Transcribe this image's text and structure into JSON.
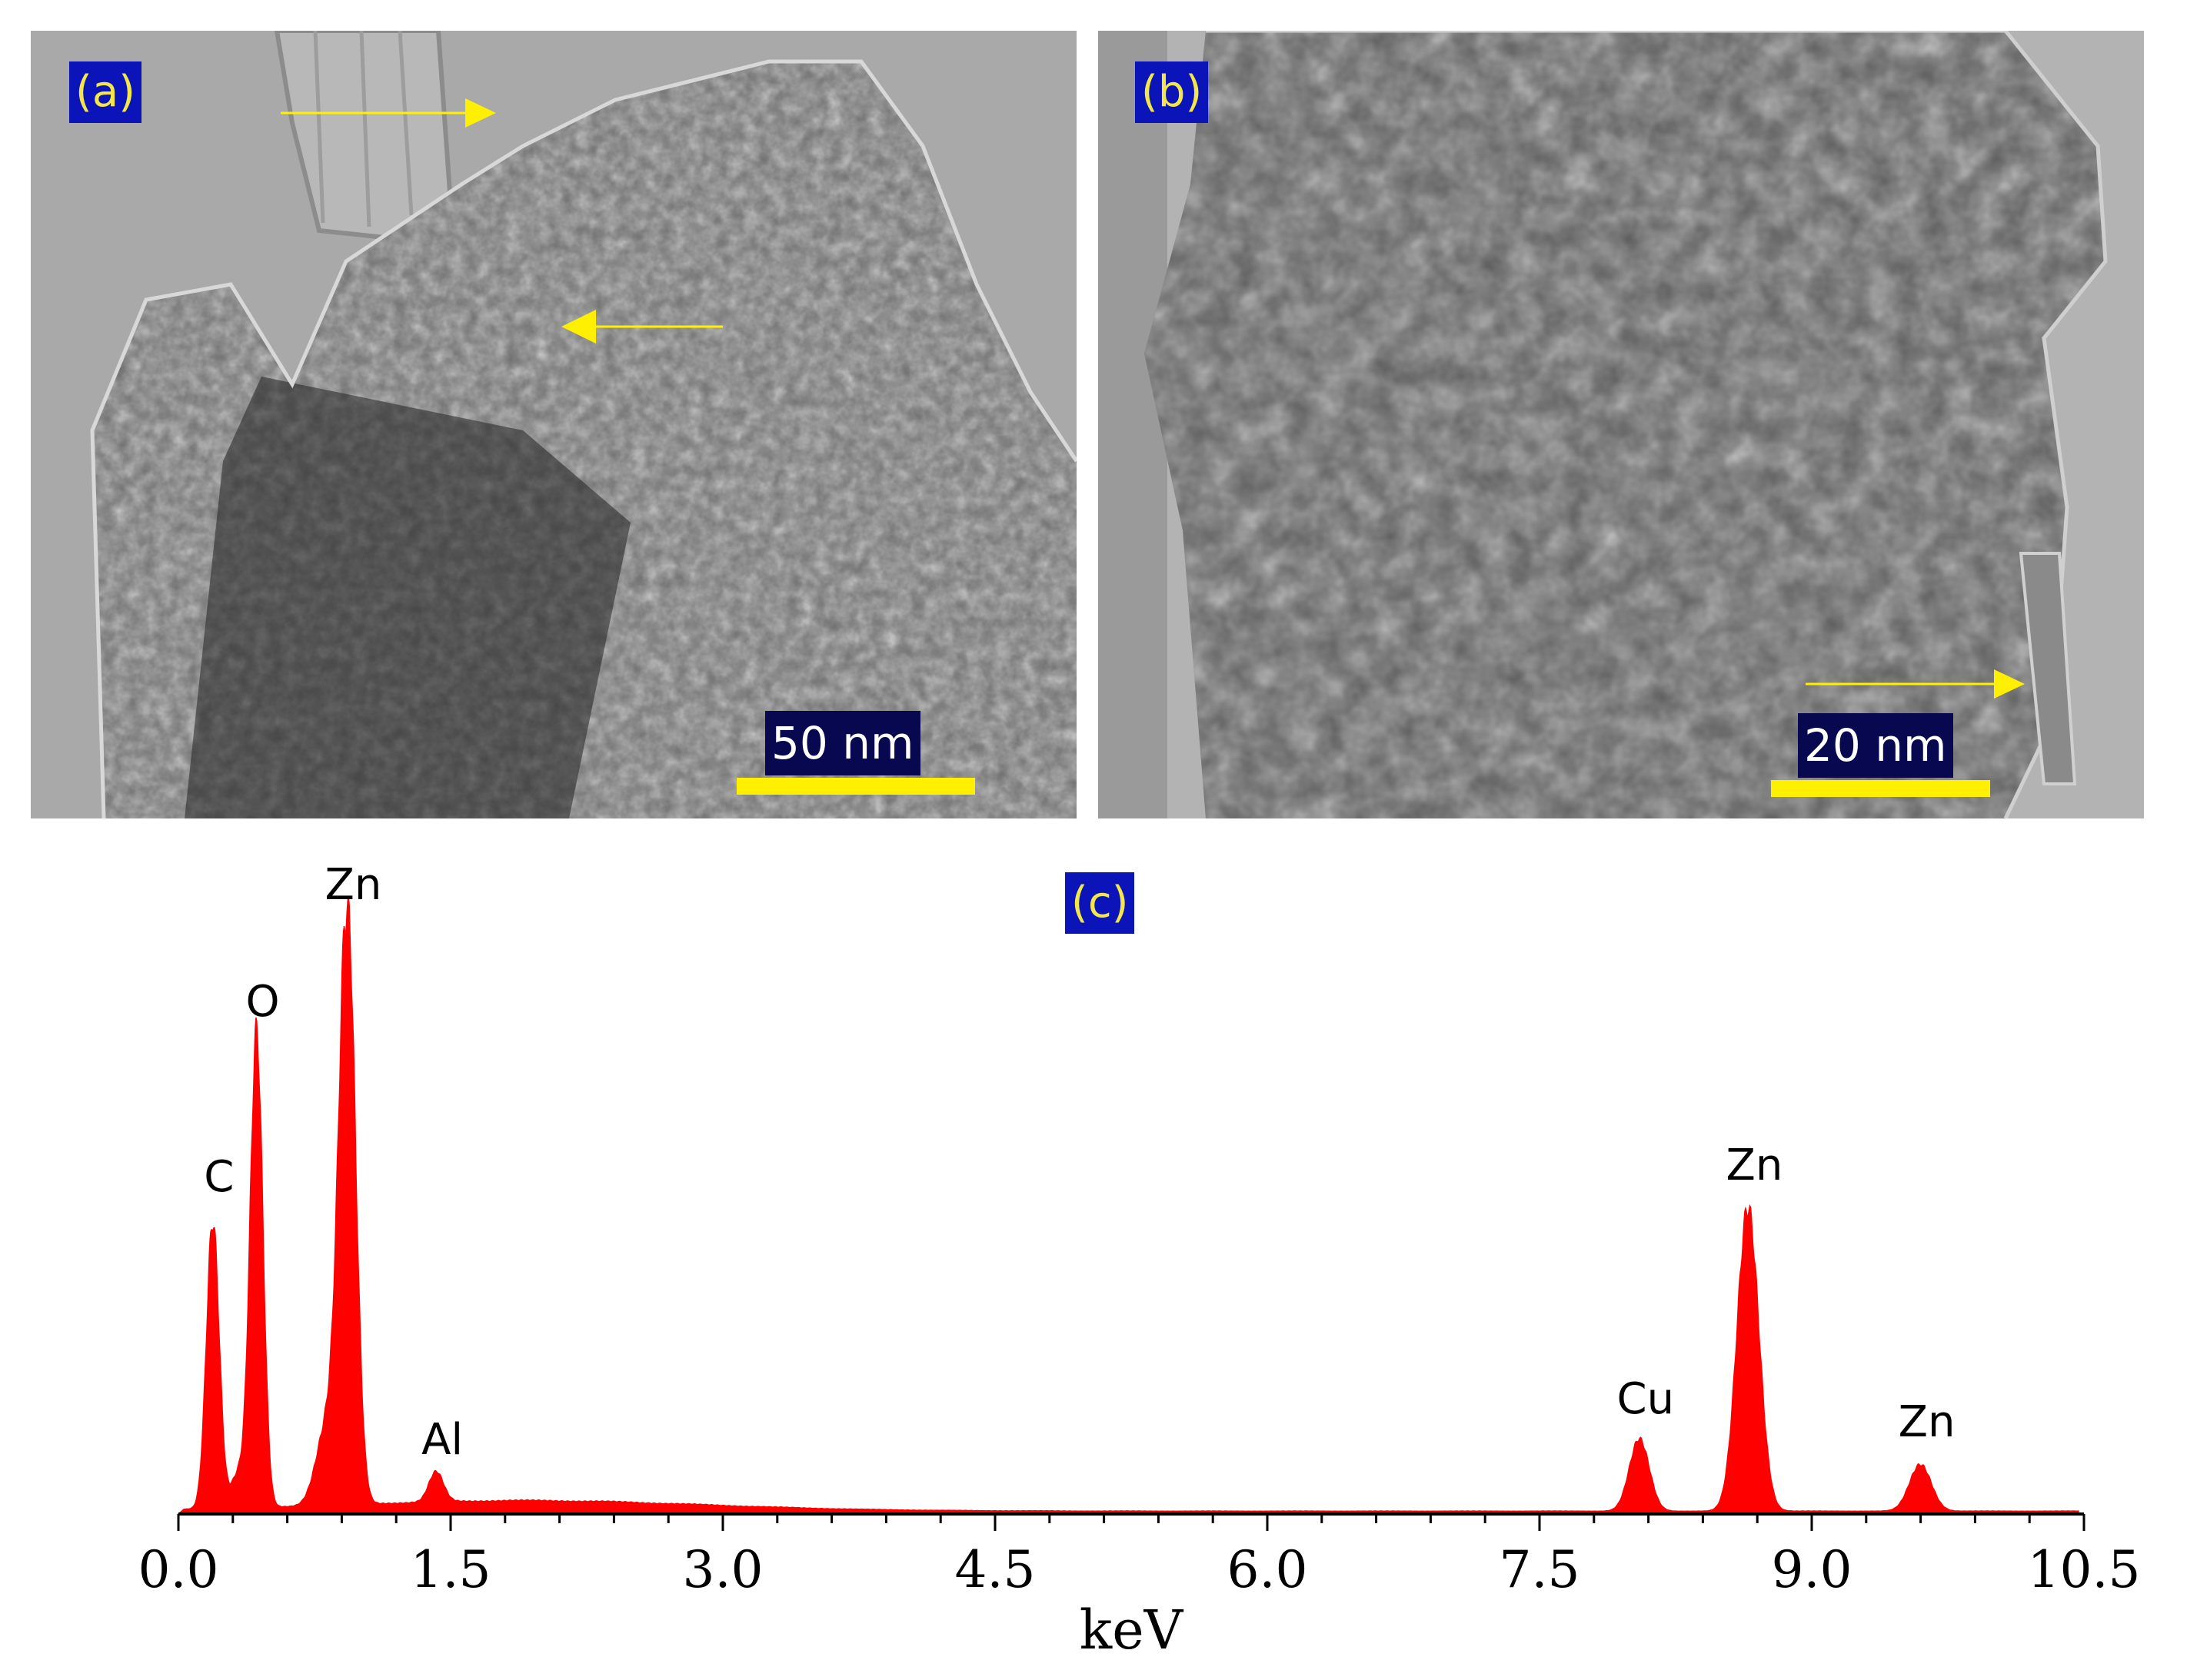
{
  "panels": {
    "a": {
      "label": "(a)",
      "scale_label": "50 nm"
    },
    "b": {
      "label": "(b)",
      "scale_label": "20 nm"
    },
    "c": {
      "label": "(c)"
    }
  },
  "colors": {
    "badge_bg": "#0a14b8",
    "badge_text": "#f2e64a",
    "scale_bar": "#ffef00",
    "arrow": "#ffef00",
    "spectrum": "#ff0000"
  },
  "chart_data": {
    "type": "area",
    "title": "",
    "xlabel": "keV",
    "ylabel": "",
    "xlim": [
      0,
      10.5
    ],
    "ylim": [
      0,
      100
    ],
    "x_ticks": [
      "0.0",
      "1.5",
      "3.0",
      "4.5",
      "6.0",
      "7.5",
      "9.0",
      "10.5"
    ],
    "y_axis_visible": false,
    "grid": false,
    "series": [
      {
        "color": "#ff0000",
        "peaks": [
          {
            "element": "C",
            "energy": 0.19,
            "intensity": 50
          },
          {
            "element": "O",
            "energy": 0.43,
            "intensity": 80
          },
          {
            "element": "Zn",
            "energy": 0.93,
            "intensity": 100
          },
          {
            "element": "Al",
            "energy": 1.42,
            "intensity": 5
          },
          {
            "element": "Cu",
            "energy": 8.05,
            "intensity": 12
          },
          {
            "element": "Zn",
            "energy": 8.65,
            "intensity": 52
          },
          {
            "element": "Zn",
            "energy": 9.6,
            "intensity": 8
          }
        ]
      }
    ]
  }
}
